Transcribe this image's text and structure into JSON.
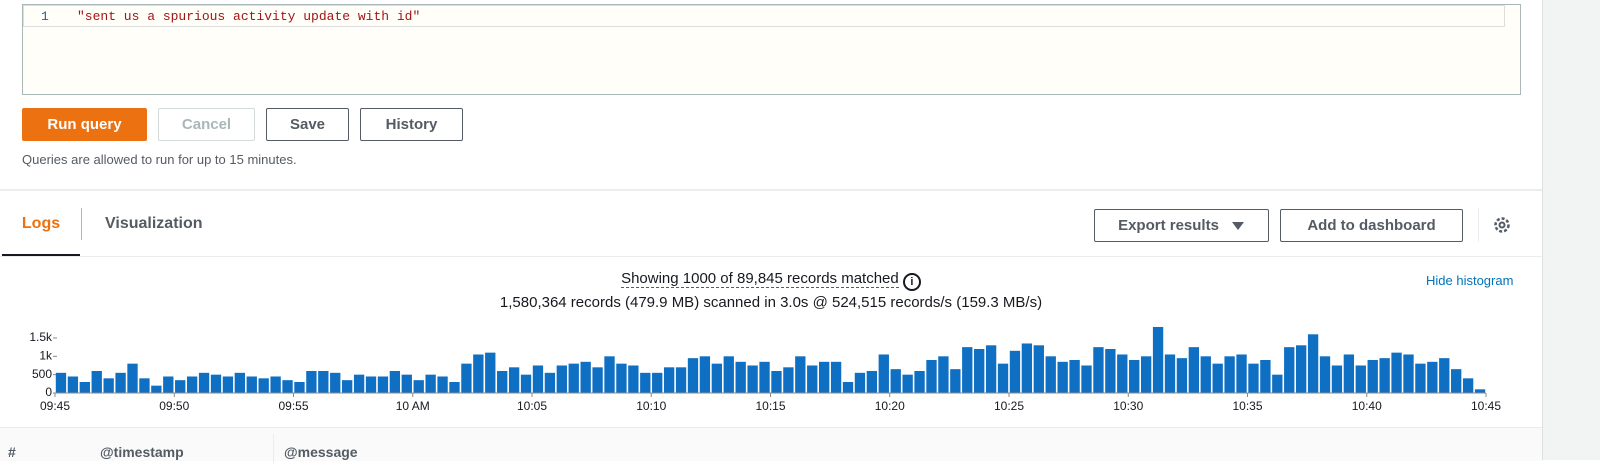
{
  "editor": {
    "line_number": "1",
    "query": "\"sent us a spurious activity update with id\""
  },
  "buttons": {
    "run": "Run query",
    "cancel": "Cancel",
    "save": "Save",
    "history": "History"
  },
  "note": "Queries are allowed to run for up to 15 minutes.",
  "tabs": {
    "logs": "Logs",
    "visualization": "Visualization"
  },
  "actions": {
    "export": "Export results",
    "dashboard": "Add to dashboard"
  },
  "summary": {
    "matched": "Showing 1000 of 89,845 records matched",
    "scanned": "1,580,364 records (479.9 MB) scanned in 3.0s @ 524,515 records/s (159.3 MB/s)",
    "hide": "Hide histogram"
  },
  "table": {
    "headers": [
      "#",
      "@timestamp",
      "@message"
    ]
  },
  "chart_data": {
    "type": "bar",
    "color": "#0f6fc2",
    "values": [
      550,
      450,
      300,
      600,
      400,
      550,
      800,
      400,
      200,
      450,
      350,
      450,
      550,
      500,
      450,
      550,
      450,
      400,
      450,
      350,
      300,
      600,
      600,
      550,
      350,
      500,
      450,
      450,
      600,
      500,
      350,
      500,
      450,
      300,
      800,
      1050,
      1100,
      600,
      700,
      500,
      750,
      550,
      750,
      800,
      850,
      700,
      1000,
      800,
      750,
      550,
      550,
      700,
      700,
      950,
      1000,
      800,
      1000,
      850,
      750,
      850,
      600,
      700,
      1000,
      750,
      850,
      850,
      300,
      550,
      600,
      1050,
      650,
      500,
      600,
      900,
      1000,
      650,
      1250,
      1200,
      1300,
      800,
      1150,
      1350,
      1300,
      1000,
      850,
      900,
      750,
      1250,
      1200,
      1050,
      900,
      1000,
      1800,
      1050,
      950,
      1250,
      1000,
      800,
      1000,
      1050,
      800,
      900,
      500,
      1250,
      1300,
      1600,
      1000,
      750,
      1050,
      750,
      900,
      950,
      1100,
      1050,
      800,
      850,
      950,
      650,
      400,
      100
    ],
    "xticks": [
      "09:45",
      "09:50",
      "09:55",
      "10 AM",
      "10:05",
      "10:10",
      "10:15",
      "10:20",
      "10:25",
      "10:30",
      "10:35",
      "10:40",
      "10:45"
    ],
    "ylim": [
      0,
      1900
    ],
    "yticks": [
      0,
      500,
      {
        "value": 1000,
        "label": "1k"
      },
      {
        "value": 1500,
        "label": "1.5k"
      }
    ]
  }
}
